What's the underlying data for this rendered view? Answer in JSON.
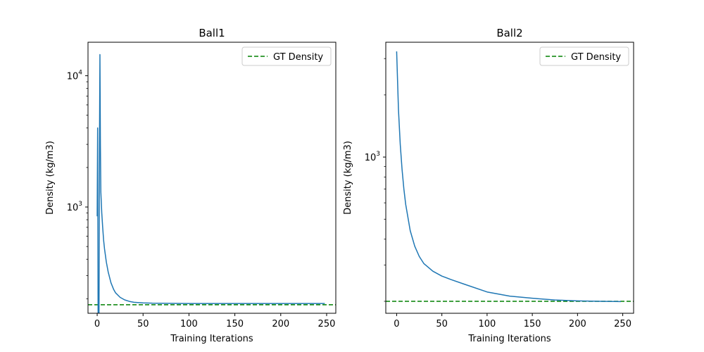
{
  "chart_data": [
    {
      "type": "line",
      "title": "Ball1",
      "xlabel": "Training Iterations",
      "ylabel": "Density (kg/m3)",
      "yscale": "log",
      "xlim": [
        -10,
        260
      ],
      "ylim": [
        155,
        18000
      ],
      "xticks": [
        0,
        50,
        100,
        150,
        200,
        250
      ],
      "yticks": [
        {
          "value": 1000,
          "base": "10",
          "exp": "3"
        },
        {
          "value": 10000,
          "base": "10",
          "exp": "4"
        }
      ],
      "legend": {
        "placement": "top-right",
        "entries": [
          "GT Density"
        ]
      },
      "gt_density": 180,
      "series": [
        {
          "color": "#1f77b4",
          "x": [
            0,
            0.5,
            1,
            1.5,
            2,
            2.5,
            3,
            3.5,
            4,
            5,
            6,
            7,
            8,
            10,
            12,
            15,
            18,
            20,
            25,
            30,
            35,
            40,
            50,
            60,
            80,
            100,
            150,
            200,
            248
          ],
          "y": [
            850,
            4000,
            150,
            150,
            150,
            3000,
            14500,
            3000,
            1300,
            900,
            700,
            560,
            480,
            380,
            320,
            265,
            235,
            222,
            205,
            196,
            191,
            188,
            186,
            185,
            184.5,
            184,
            184,
            184,
            184
          ]
        }
      ]
    },
    {
      "type": "line",
      "title": "Ball2",
      "xlabel": "Training Iterations",
      "ylabel": "Density (kg/m3)",
      "yscale": "log",
      "xlim": [
        -12,
        262
      ],
      "ylim": [
        175,
        3600
      ],
      "xticks": [
        0,
        50,
        100,
        150,
        200,
        250
      ],
      "yticks": [
        {
          "value": 1000,
          "base": "10",
          "exp": "3"
        }
      ],
      "legend": {
        "placement": "top-right",
        "entries": [
          "GT Density"
        ]
      },
      "gt_density": 200,
      "series": [
        {
          "color": "#1f77b4",
          "x": [
            0,
            2,
            4,
            6,
            8,
            10,
            15,
            20,
            25,
            30,
            40,
            50,
            60,
            75,
            100,
            125,
            150,
            175,
            200,
            225,
            248
          ],
          "y": [
            3250,
            1700,
            1150,
            870,
            700,
            590,
            440,
            370,
            330,
            305,
            280,
            265,
            255,
            242,
            222,
            212,
            207,
            203,
            201,
            200,
            199.5
          ]
        }
      ]
    }
  ]
}
